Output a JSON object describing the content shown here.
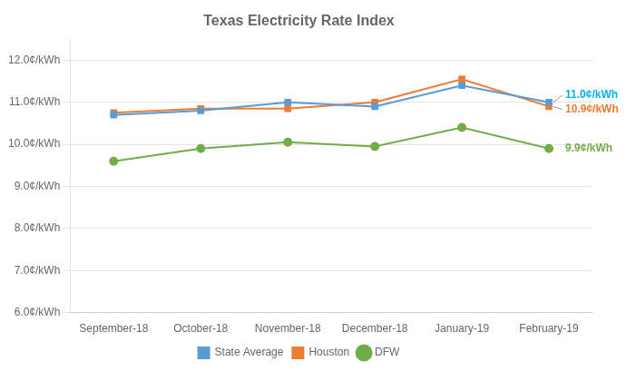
{
  "chart_data": {
    "type": "line",
    "title": "Texas Electricity Rate Index",
    "categories": [
      "September-18",
      "October-18",
      "November-18",
      "December-18",
      "January-19",
      "February-19"
    ],
    "series": [
      {
        "name": "State Average",
        "color": "#5B9BD5",
        "marker": "square",
        "values": [
          10.7,
          10.8,
          11.0,
          10.9,
          11.4,
          11.0
        ]
      },
      {
        "name": "Houston",
        "color": "#ED7D31",
        "marker": "square",
        "values": [
          10.75,
          10.85,
          10.85,
          11.0,
          11.55,
          10.9
        ]
      },
      {
        "name": "DFW",
        "color": "#70AD47",
        "marker": "circle",
        "values": [
          9.6,
          9.9,
          10.05,
          9.95,
          10.4,
          9.9
        ]
      }
    ],
    "ylim": [
      6.0,
      12.5
    ],
    "yticks": [
      {
        "value": 6.0,
        "label": "6.0¢/kWh"
      },
      {
        "value": 7.0,
        "label": "7.0¢/kWh"
      },
      {
        "value": 8.0,
        "label": "8.0¢/kWh"
      },
      {
        "value": 9.0,
        "label": "9.0¢/kWh"
      },
      {
        "value": 10.0,
        "label": "10.0¢/kWh"
      },
      {
        "value": 11.0,
        "label": "11.0¢/kWh"
      },
      {
        "value": 12.0,
        "label": "12.0¢/kWh"
      }
    ],
    "grid": true,
    "legend": "bottom",
    "annotations": [
      {
        "text": "11.0¢/kWh",
        "color": "#00B0F0"
      },
      {
        "text": "10.9¢/kWh",
        "color": "#ED7D31"
      },
      {
        "text": "9.9¢/kWh",
        "color": "#70AD47"
      }
    ]
  }
}
